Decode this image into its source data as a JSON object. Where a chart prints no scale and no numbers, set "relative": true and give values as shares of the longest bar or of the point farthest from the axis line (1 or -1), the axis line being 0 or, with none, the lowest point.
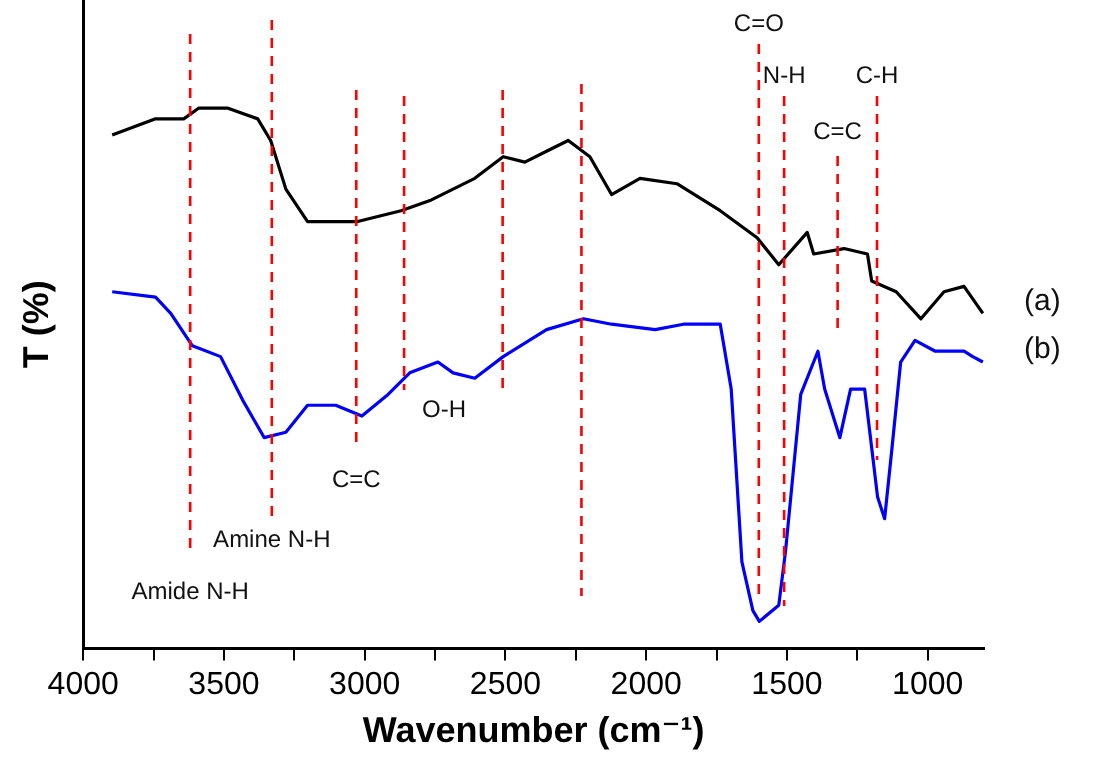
{
  "chart_data": {
    "type": "line",
    "xlabel": "Wavenumber (cm⁻¹)",
    "ylabel": "T (%)",
    "relative": true,
    "legend": false,
    "grid": false,
    "xlim": [
      4000,
      800
    ],
    "xticks": [
      4000,
      {
        "value": 3750,
        "label": null
      },
      3500,
      {
        "value": 3250,
        "label": null
      },
      3000,
      {
        "value": 2750,
        "label": null
      },
      2500,
      {
        "value": 2250,
        "label": null
      },
      2000,
      {
        "value": 1750,
        "label": null
      },
      1500,
      {
        "value": 1250,
        "label": null
      },
      1000
    ],
    "series": [
      {
        "name": "(a)",
        "color": "#000000",
        "x": [
          3897,
          3743,
          3643,
          3589,
          3488,
          3380,
          3334,
          3280,
          3203,
          3025,
          2871,
          2763,
          2609,
          2508,
          2431,
          2354,
          2277,
          2200,
          2123,
          2022,
          1891,
          1737,
          1606,
          1529,
          1428,
          1405,
          1297,
          1214,
          1199,
          1112,
          1024,
          942,
          871,
          804
        ],
        "values": [
          0.95,
          0.98,
          0.98,
          1,
          1,
          0.98,
          0.94,
          0.85,
          0.79,
          0.79,
          0.81,
          0.83,
          0.87,
          0.91,
          0.9,
          0.92,
          0.94,
          0.91,
          0.84,
          0.87,
          0.86,
          0.81,
          0.76,
          0.71,
          0.77,
          0.73,
          0.74,
          0.73,
          0.68,
          0.66,
          0.61,
          0.66,
          0.67,
          0.62
        ]
      },
      {
        "name": "(b)",
        "color": "#0000ff",
        "x": [
          3897,
          3743,
          3689,
          3612,
          3512,
          3434,
          3357,
          3280,
          3203,
          3103,
          3010,
          2917,
          2840,
          2740,
          2686,
          2609,
          2508,
          2354,
          2223,
          2123,
          1968,
          1868,
          1737,
          1698,
          1660,
          1621,
          1598,
          1529,
          1505,
          1451,
          1390,
          1366,
          1312,
          1274,
          1224,
          1178,
          1153,
          1127,
          1096,
          1045,
          973,
          871,
          840,
          804
        ],
        "values": [
          0.66,
          0.65,
          0.62,
          0.56,
          0.54,
          0.46,
          0.39,
          0.4,
          0.45,
          0.45,
          0.43,
          0.47,
          0.51,
          0.53,
          0.51,
          0.5,
          0.54,
          0.59,
          0.61,
          0.6,
          0.59,
          0.6,
          0.6,
          0.48,
          0.16,
          0.07,
          0.05,
          0.08,
          0.18,
          0.47,
          0.55,
          0.48,
          0.39,
          0.48,
          0.48,
          0.28,
          0.24,
          0.37,
          0.53,
          0.57,
          0.55,
          0.55,
          0.54,
          0.53
        ]
      }
    ],
    "ref_lines": [
      {
        "axis": "x",
        "value": 3620,
        "label": "Amide N-H",
        "color": "#ff0000",
        "line_style": "dashed"
      },
      {
        "axis": "x",
        "value": 3330,
        "label": "Amine N-H",
        "color": "#ff0000",
        "line_style": "dashed"
      },
      {
        "axis": "x",
        "value": 3030,
        "label": "C=C",
        "color": "#ff0000",
        "line_style": "dashed"
      },
      {
        "axis": "x",
        "value": 2860,
        "label": "O-H",
        "color": "#ff0000",
        "line_style": "dashed"
      },
      {
        "axis": "x",
        "value": 2510,
        "color": "#ff0000",
        "line_style": "dashed"
      },
      {
        "axis": "x",
        "value": 2230,
        "color": "#ff0000",
        "line_style": "dashed"
      },
      {
        "axis": "x",
        "value": 1600,
        "label": "C=O",
        "color": "#ff0000",
        "line_style": "dashed"
      },
      {
        "axis": "x",
        "value": 1510,
        "label": "N-H",
        "color": "#ff0000",
        "line_style": "dashed"
      },
      {
        "axis": "x",
        "value": 1320,
        "label": "C=C",
        "color": "#ff0000",
        "line_style": "dashed"
      },
      {
        "axis": "x",
        "value": 1180,
        "label": "C-H",
        "color": "#ff0000",
        "line_style": "dashed"
      }
    ]
  }
}
